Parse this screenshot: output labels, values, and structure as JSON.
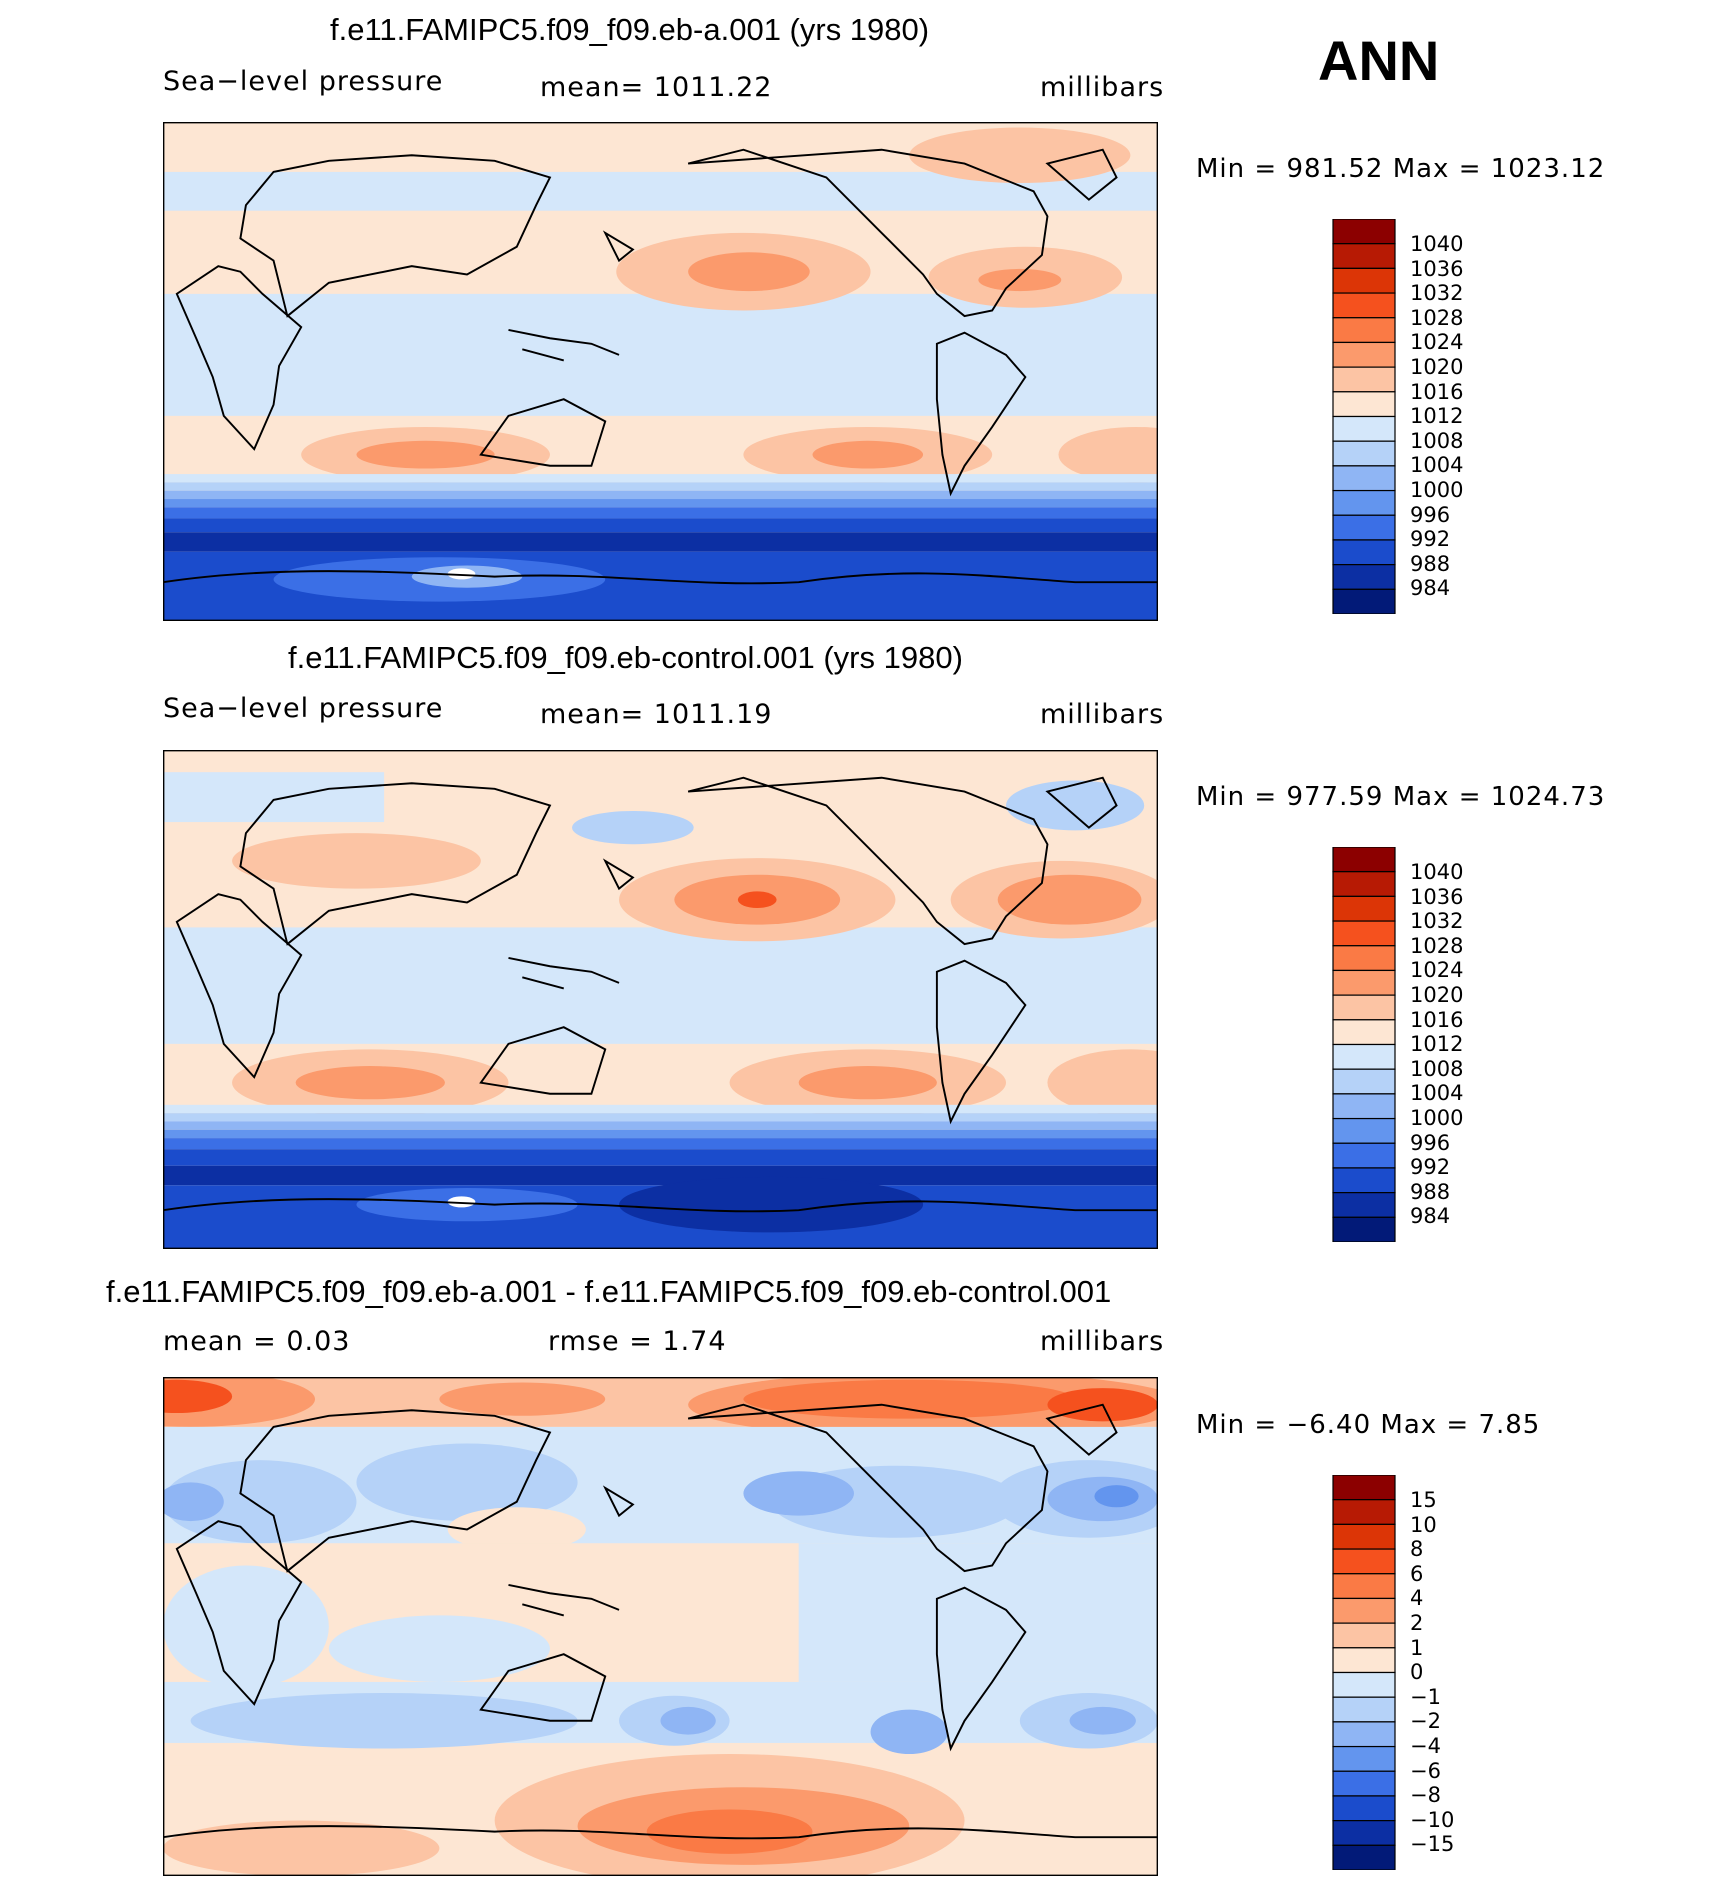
{
  "season": "ANN",
  "panels": [
    {
      "id": "case-a",
      "title": "f.e11.FAMIPC5.f09_f09.eb-a.001 (yrs 1980)",
      "left_label": "Sea−level pressure",
      "center_label": "mean=  1011.22",
      "right_label": "millibars",
      "min_max": "Min  =  981.52  Max  =  1023.12",
      "palette": "abs"
    },
    {
      "id": "control",
      "title": "f.e11.FAMIPC5.f09_f09.eb-control.001 (yrs 1980)",
      "left_label": "Sea−level pressure",
      "center_label": "mean=  1011.19",
      "right_label": "millibars",
      "min_max": "Min  =  977.59  Max  =  1024.73",
      "palette": "abs"
    },
    {
      "id": "difference",
      "title": "f.e11.FAMIPC5.f09_f09.eb-a.001 - f.e11.FAMIPC5.f09_f09.eb-control.001",
      "left_label": "mean =      0.03",
      "center_label": "rmse  =      1.74",
      "right_label": "millibars",
      "min_max": "Min  =    −6.40  Max  =       7.85",
      "palette": "diff"
    }
  ],
  "colorbars": {
    "abs": {
      "labels": [
        "1040",
        "1036",
        "1032",
        "1028",
        "1024",
        "1020",
        "1016",
        "1012",
        "1008",
        "1004",
        "1000",
        "996",
        "992",
        "988",
        "984"
      ],
      "colors": [
        "#8c0000",
        "#b71a04",
        "#dc3506",
        "#f5511e",
        "#fa7a45",
        "#fb9a6c",
        "#fcc4a4",
        "#fde6d3",
        "#d4e7fa",
        "#b5d2f8",
        "#8fb5f4",
        "#6395ee",
        "#3b6fe6",
        "#1b4ccc",
        "#0c2fa3",
        "#021a78"
      ]
    },
    "diff": {
      "labels": [
        "15",
        "10",
        "8",
        "6",
        "4",
        "2",
        "1",
        "0",
        "−1",
        "−2",
        "−4",
        "−6",
        "−8",
        "−10",
        "−15"
      ],
      "colors": [
        "#8c0000",
        "#b71a04",
        "#dc3506",
        "#f5511e",
        "#fa7a45",
        "#fb9a6c",
        "#fcc4a4",
        "#fde6d3",
        "#d4e7fa",
        "#b5d2f8",
        "#8fb5f4",
        "#6395ee",
        "#3b6fe6",
        "#1b4ccc",
        "#0c2fa3",
        "#021a78"
      ]
    }
  }
}
